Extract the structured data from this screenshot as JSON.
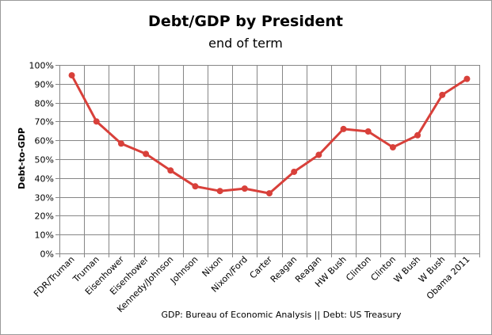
{
  "chart_data": {
    "type": "line",
    "title": "Debt/GDP by President",
    "subtitle": "end of term",
    "ylabel": "Debt-to-GDP",
    "xlabel": "",
    "source_note": "GDP: Bureau of Economic Analysis || Debt: US Treasury",
    "ylim": [
      0,
      100
    ],
    "ytick_step": 10,
    "ytick_suffix": "%",
    "grid": true,
    "legend": "none",
    "line_color": "#d8403a",
    "categories": [
      "FDR/Truman",
      "Truman",
      "Eisenhower",
      "Eisenhower",
      "Kennedy/Johnson",
      "Johnson",
      "Nixon",
      "Nixon/Ford",
      "Carter",
      "Reagan",
      "Reagan",
      "HW Bush",
      "Clinton",
      "Clinton",
      "W Bush",
      "W Bush",
      "Obama 2011"
    ],
    "values": [
      94.5,
      70,
      58.3,
      52.8,
      44,
      35.6,
      33.1,
      34.4,
      31.9,
      43.3,
      52.3,
      66,
      64.7,
      56.3,
      62.7,
      84.1,
      92.6
    ]
  }
}
